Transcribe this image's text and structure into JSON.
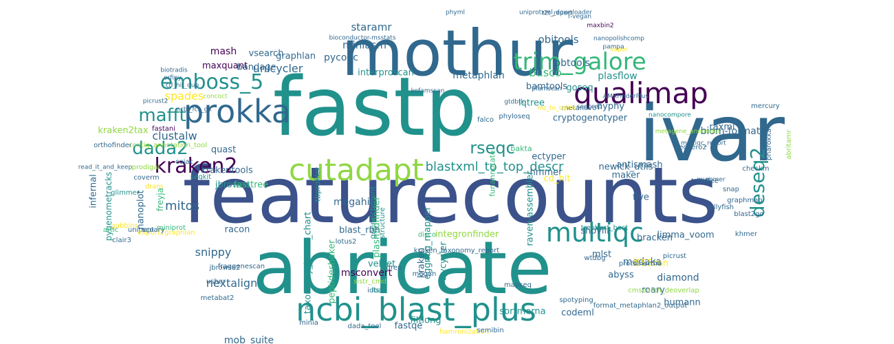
{
  "palette": {
    "background": "#ffffff",
    "dark_purple": "#440154",
    "indigo": "#3b528b",
    "steel_blue": "#31688e",
    "teal": "#21918c",
    "green": "#35b779",
    "lime": "#90d743",
    "yellow": "#fde725"
  },
  "words": [
    "featurecounts",
    "fastp",
    "ivar",
    "abricate",
    "mothur",
    "ncbi_blast_plus",
    "cutadapt",
    "prokka",
    "qualimap",
    "trim_galore",
    "multiqc",
    "emboss_5",
    "deseq2",
    "kraken2",
    "mafft",
    "dada2",
    "rseqc",
    "blastxml_to_top_descr",
    "unicycler",
    "spades",
    "clustalw",
    "busco",
    "obitools",
    "miniasm",
    "staramr",
    "pycoqc",
    "bbtools",
    "bamtools",
    "mash",
    "vsearch",
    "graphlan",
    "bandage",
    "maxquant",
    "metaphlan",
    "interproscan",
    "plasflow",
    "iqtree",
    "goseq",
    "hyphy",
    "cryptogenotyper",
    "raxml",
    "biom-format",
    "kraken2tax",
    "quast",
    "krakentools",
    "jbrowse",
    "fasttree",
    "megahit",
    "ectyper",
    "hmmer",
    "maker",
    "newick_utils",
    "antismash",
    "raven-assembler",
    "infernal",
    "pygenometracks",
    "nanoplot",
    "freyja",
    "mitos",
    "racon",
    "snippy",
    "nextalign",
    "mob_suite",
    "peptideshaker",
    "taxonomy_krona_chart",
    "eggnog_mapper",
    "plasmidfinder",
    "blast_rbh",
    "kraken",
    "trycycler",
    "msconvert",
    "velvet",
    "integronfinder",
    "cd_hit",
    "shovill",
    "mlst",
    "flye",
    "bracken",
    "limma_voom",
    "medaka",
    "ISEScan",
    "diamond",
    "roary",
    "abyss",
    "humann",
    "codeml",
    "sortmerna",
    "filtlong",
    "fastqe",
    "goenrichment",
    "tbprofiler",
    "funannotate",
    "bakta",
    "gubbins",
    "artic",
    "unipept",
    "export2graphlan",
    "lotus2",
    "structure",
    "disco",
    "miniprot",
    "scoary",
    "dram",
    "glimmer",
    "prodigal",
    "coverm",
    "orthofinder",
    "fastani",
    "contig_annotation_tool",
    "cojac",
    "seqkit",
    "falco",
    "snap",
    "graphmap",
    "blast2go",
    "khmer",
    "jellyfish",
    "treebest_best",
    "metanovo",
    "phyloseq",
    "seqsero2",
    "t_coffee",
    "checkm",
    "mercury",
    "pharokka",
    "abritamr",
    "clair3",
    "usher",
    "jbrowse2",
    "fraggenescan",
    "metabat2",
    "minia",
    "dada_tool",
    "hamronization",
    "semibin",
    "drep",
    "sistr_cmd",
    "idba",
    "itsx",
    "megan",
    "wtdbg",
    "proteinortho",
    "picrust",
    "kraken_taxonomy_report",
    "spotyping",
    "format_metaphlan2_output",
    "cmsearch_deoverlap",
    "mapseq",
    "orfipy",
    "biotradis",
    "cd_hit_dup",
    "ncbi_fcs_gx",
    "picrust2",
    "concoct",
    "vapor",
    "mz_to_sqlite",
    "kofamscan",
    "pfamscan",
    "AMRFinderPlus",
    "nanocompore",
    "seqprep",
    "gtdbtk",
    "nanopolishcomp",
    "pampa",
    "maxbin2",
    "bioconductor-msstats",
    "phyml",
    "t2t_report",
    "r-vegan",
    "uniprotxml_downloader",
    "metagene_annotator",
    "read_it_and_keep",
    "multiqc_report",
    "mummer"
  ]
}
